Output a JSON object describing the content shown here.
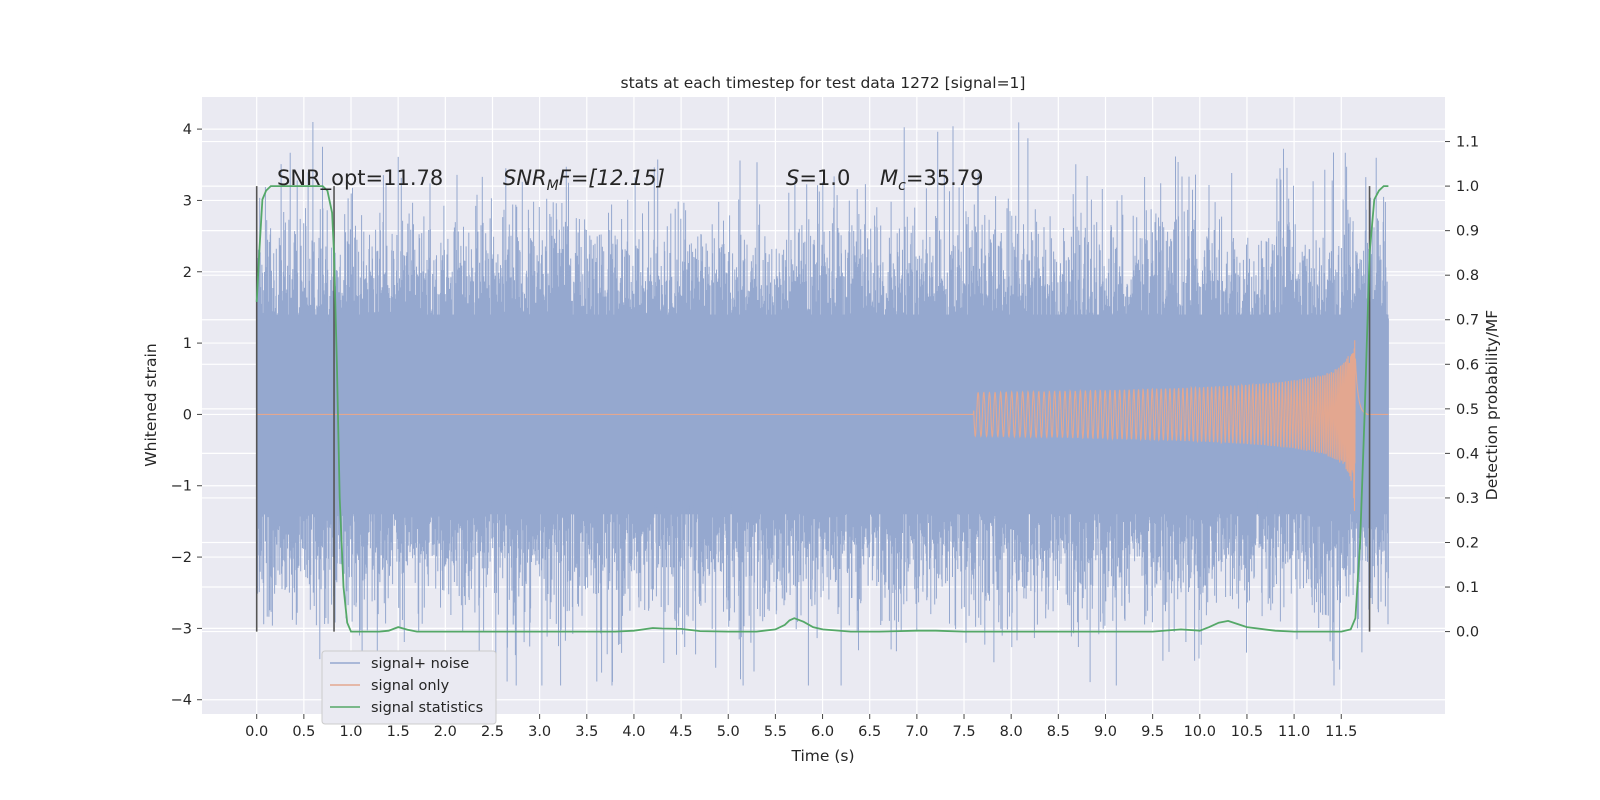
{
  "chart_data": {
    "type": "line",
    "title": "stats at each timestep for test data 1272 [signal=1]",
    "xlabel": "Time (s)",
    "ylabel": "Whitened strain",
    "y2label": "Detection probability/MF",
    "xlim": [
      -0.58,
      12.6
    ],
    "ylim": [
      -4.2,
      4.45
    ],
    "y2lim": [
      -0.185,
      1.2
    ],
    "x_ticks": [
      "0.0",
      "0.5",
      "1.0",
      "1.5",
      "2.0",
      "2.5",
      "3.0",
      "3.5",
      "4.0",
      "4.5",
      "5.0",
      "5.5",
      "6.0",
      "6.5",
      "7.0",
      "7.5",
      "8.0",
      "8.5",
      "9.0",
      "9.5",
      "10.0",
      "10.5",
      "11.0",
      "11.5"
    ],
    "y_ticks": [
      "4",
      "3",
      "2",
      "1",
      "0",
      "−1",
      "−2",
      "−3",
      "−4"
    ],
    "y2_ticks": [
      "1.1",
      "1.0",
      "0.9",
      "0.8",
      "0.7",
      "0.6",
      "0.5",
      "0.4",
      "0.3",
      "0.2",
      "0.1",
      "0.0"
    ],
    "grid": true,
    "legend_position": "lower-left",
    "annotation_parts": {
      "snr_opt": "SNR_opt=11.78",
      "snr_mf_sym": "SNR",
      "snr_mf_sub": "M",
      "snr_mf_rest": "F=[12.15]",
      "s_sym": "S",
      "s_rest": "=1.0",
      "mc_sym": "M",
      "mc_sub": "c",
      "mc_rest": "=35.79"
    },
    "series": [
      {
        "name": "signal+ noise",
        "color": "#95a8cf",
        "x_range": [
          0.0,
          12.0
        ],
        "envelope_y": [
          -3.8,
          4.1
        ],
        "dense_band_y": [
          -1.4,
          1.4
        ]
      },
      {
        "name": "signal only",
        "color": "#e3a790",
        "chirp_start_x": 7.6,
        "merger_x": 11.65,
        "peak_amplitude": 1.55
      },
      {
        "name": "signal statistics",
        "color": "#55a868",
        "x": [
          0.0,
          0.03,
          0.06,
          0.1,
          0.15,
          0.2,
          0.3,
          0.4,
          0.5,
          0.6,
          0.7,
          0.75,
          0.8,
          0.82,
          0.85,
          0.88,
          0.92,
          0.96,
          1.0,
          1.1,
          1.2,
          1.3,
          1.4,
          1.5,
          1.6,
          1.7,
          2.0,
          2.5,
          3.0,
          3.5,
          3.8,
          4.0,
          4.2,
          4.3,
          4.5,
          4.7,
          5.0,
          5.3,
          5.5,
          5.6,
          5.65,
          5.7,
          5.8,
          5.9,
          6.0,
          6.3,
          6.6,
          7.0,
          7.2,
          7.5,
          8.0,
          8.5,
          9.0,
          9.5,
          9.8,
          10.0,
          10.1,
          10.2,
          10.3,
          10.4,
          10.5,
          10.8,
          11.0,
          11.2,
          11.5,
          11.6,
          11.65,
          11.7,
          11.75,
          11.8,
          11.85,
          11.9,
          11.95,
          12.0
        ],
        "y": [
          0.74,
          0.86,
          0.97,
          0.99,
          1.0,
          1.0,
          1.0,
          1.0,
          1.0,
          1.0,
          1.0,
          0.99,
          0.94,
          0.85,
          0.6,
          0.3,
          0.1,
          0.02,
          0.0,
          0.0,
          0.0,
          0.0,
          0.002,
          0.01,
          0.004,
          0.0,
          0.0,
          0.0,
          0.0,
          0.0,
          0.0,
          0.002,
          0.008,
          0.007,
          0.006,
          0.001,
          0.0,
          0.0,
          0.005,
          0.015,
          0.025,
          0.03,
          0.022,
          0.01,
          0.005,
          0.0,
          0.0,
          0.002,
          0.002,
          0.0,
          0.0,
          0.0,
          0.0,
          0.0,
          0.005,
          0.002,
          0.01,
          0.02,
          0.024,
          0.017,
          0.01,
          0.002,
          0.0,
          0.0,
          0.0,
          0.005,
          0.03,
          0.2,
          0.5,
          0.85,
          0.97,
          0.99,
          1.0,
          1.0
        ]
      }
    ],
    "vertical_markers_x": [
      0.0,
      0.82,
      11.8
    ]
  }
}
